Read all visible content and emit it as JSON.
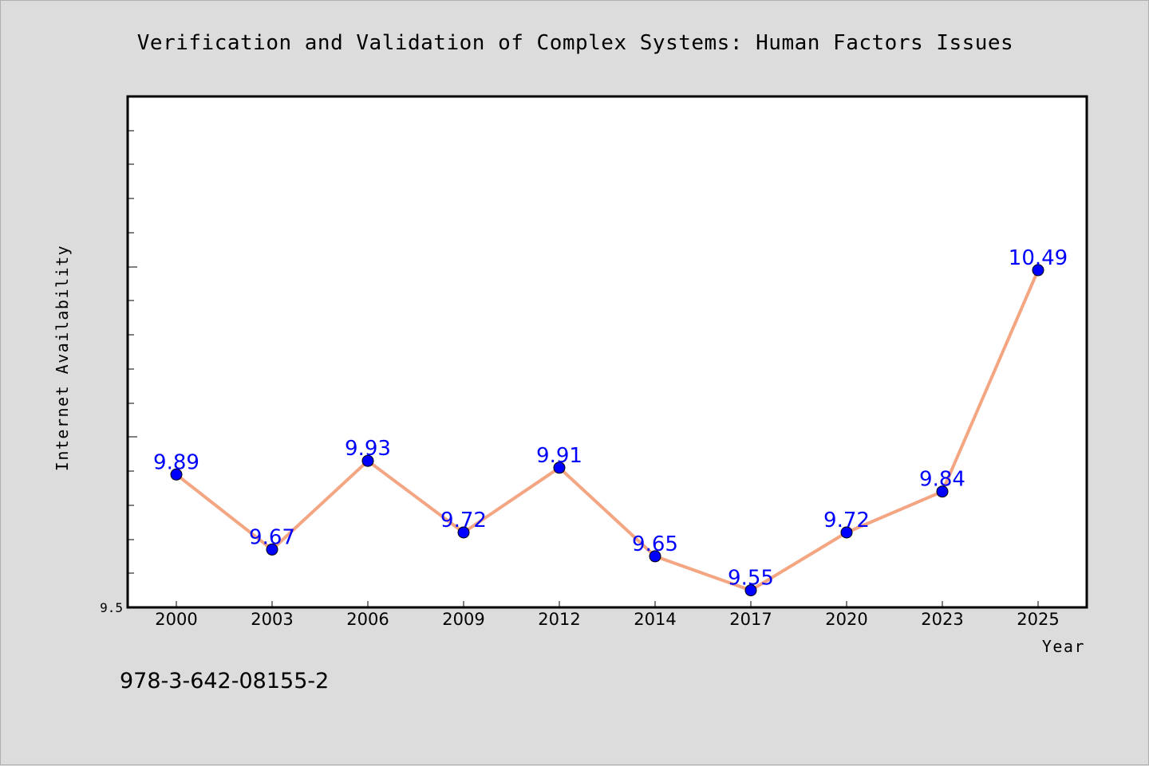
{
  "chart_data": {
    "type": "line",
    "title": "Verification and Validation of Complex Systems: Human Factors Issues",
    "xlabel": "Year",
    "ylabel": "Internet Availability",
    "categories": [
      "2000",
      "2003",
      "2006",
      "2009",
      "2012",
      "2014",
      "2017",
      "2020",
      "2023",
      "2025"
    ],
    "series": [
      {
        "values": [
          9.89,
          9.67,
          9.93,
          9.72,
          9.91,
          9.65,
          9.55,
          9.72,
          9.84,
          10.49
        ],
        "labels": [
          "9.89",
          "9.67",
          "9.93",
          "9.72",
          "9.91",
          "9.65",
          "9.55",
          "9.72",
          "9.84",
          "10.49"
        ],
        "line_color": "#f4a582",
        "marker_color": "#0000ff",
        "label_color": "#0000ff"
      }
    ],
    "ylim": [
      9.5,
      11.0
    ],
    "yticks_labeled": [
      "9.5"
    ],
    "grid": false,
    "legend": "none"
  },
  "footer": {
    "text": "978-3-642-08155-2"
  },
  "colors": {
    "background": "#dcdcdc",
    "plot_background": "#ffffff"
  }
}
